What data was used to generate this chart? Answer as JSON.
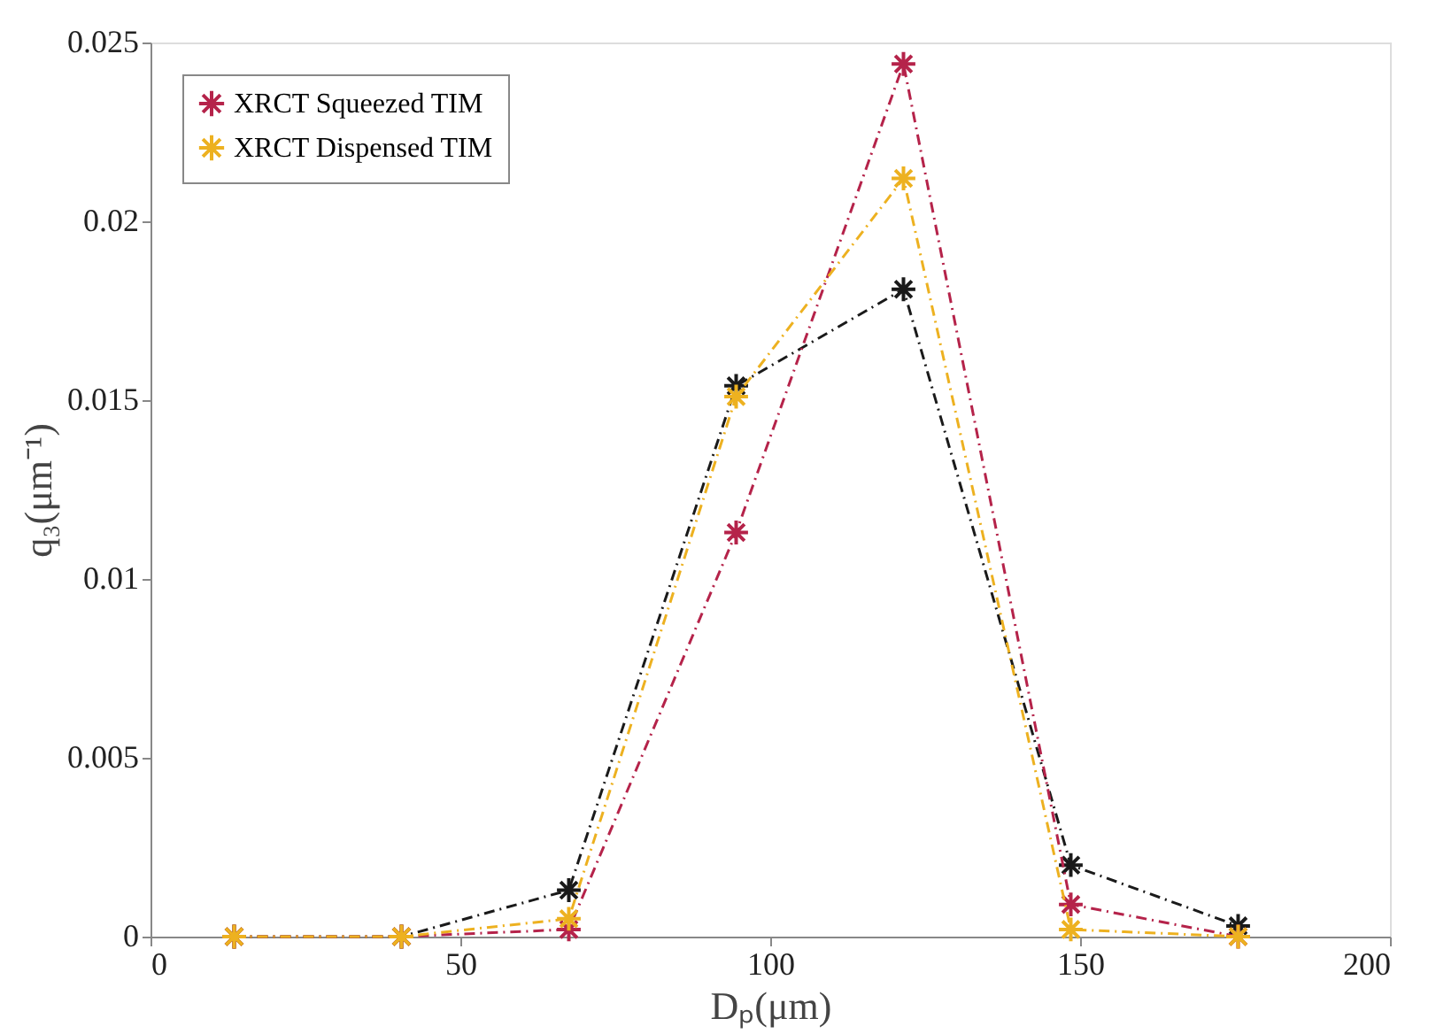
{
  "chart_data": {
    "type": "line",
    "xlabel": "Dₚ(μm)",
    "ylabel": "q₃(μm⁻¹)",
    "x": [
      13.5,
      40.5,
      67.5,
      94.5,
      121.5,
      148.5,
      175.5
    ],
    "series": [
      {
        "color": "#1a1a1a",
        "values": [
          0,
          0,
          0.0013,
          0.0154,
          0.0181,
          0.002,
          0.0003
        ]
      },
      {
        "name": "XRCT Squeezed TIM",
        "color": "#b5234a",
        "values": [
          0,
          0,
          0.0002,
          0.0113,
          0.0244,
          0.0009,
          0
        ]
      },
      {
        "name": "XRCT Dispensed TIM",
        "color": "#edb120",
        "values": [
          0,
          0,
          0.0005,
          0.0151,
          0.0212,
          0.0002,
          0
        ]
      }
    ],
    "xlim": [
      0,
      200
    ],
    "xticks": [
      0,
      50,
      100,
      150,
      200
    ],
    "ylim": [
      0,
      0.025
    ],
    "yticks": [
      0,
      0.005,
      0.01,
      0.015,
      0.02,
      0.025
    ],
    "grid": false,
    "legend": "top left",
    "marker": "cross",
    "line_style": "dashed"
  }
}
